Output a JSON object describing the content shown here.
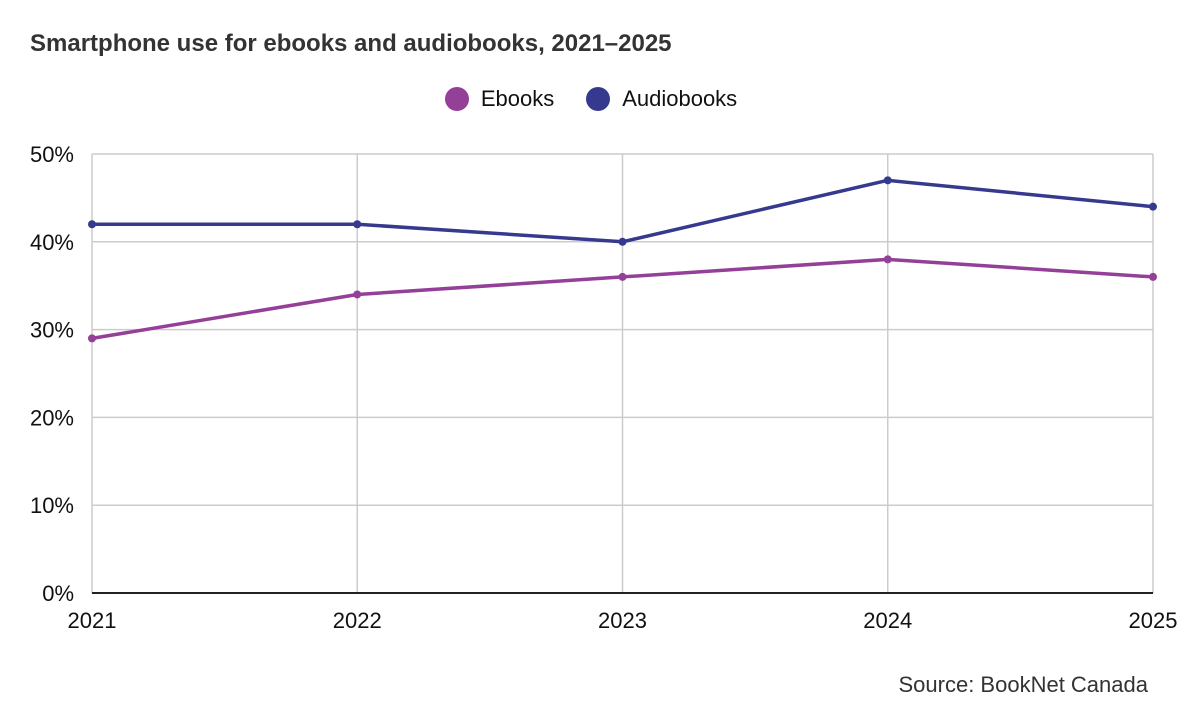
{
  "colors": {
    "ebooks": "#943f98",
    "audiobooks": "#363a8e",
    "grid": "#cccccc",
    "axis": "#222222"
  },
  "chart_data": {
    "type": "line",
    "title": "Smartphone use for ebooks and audiobooks, 2021–2025",
    "x": [
      "2021",
      "2022",
      "2023",
      "2024",
      "2025"
    ],
    "y_ticks": [
      "0%",
      "10%",
      "20%",
      "30%",
      "40%",
      "50%"
    ],
    "ylim": [
      0,
      50
    ],
    "grid": true,
    "legend_position": "top-center",
    "series": [
      {
        "name": "Ebooks",
        "values": [
          29,
          34,
          36,
          38,
          36
        ]
      },
      {
        "name": "Audiobooks",
        "values": [
          42,
          42,
          40,
          47,
          44
        ]
      }
    ],
    "source": "Source: BookNet Canada"
  }
}
